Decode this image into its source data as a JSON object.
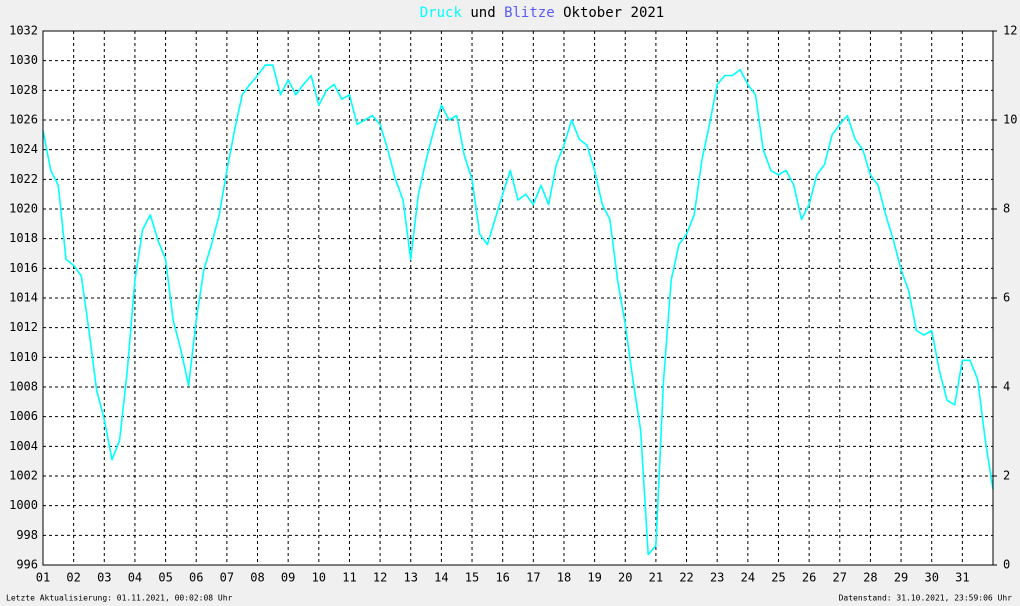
{
  "chart_data": {
    "type": "line",
    "title": [
      {
        "text": "Druck",
        "color": "#00ffff"
      },
      {
        "text": "und",
        "color": "#000000"
      },
      {
        "text": "Blitze",
        "color": "#5a5aff"
      },
      {
        "text": "Oktober 2021",
        "color": "#000000"
      }
    ],
    "footer_left": "Letzte Aktualisierung: 01.11.2021, 00:02:08 Uhr",
    "footer_right": "Datenstand: 31.10.2021, 23:59:06 Uhr",
    "x": [
      0,
      0.25,
      0.5,
      0.75,
      1,
      1.25,
      1.5,
      1.75,
      2,
      2.25,
      2.5,
      2.75,
      3,
      3.25,
      3.5,
      3.75,
      4,
      4.25,
      4.5,
      4.75,
      5,
      5.25,
      5.5,
      5.75,
      6,
      6.25,
      6.5,
      6.75,
      7,
      7.25,
      7.5,
      7.75,
      8,
      8.25,
      8.5,
      8.75,
      9,
      9.25,
      9.5,
      9.75,
      10,
      10.25,
      10.5,
      10.75,
      11,
      11.25,
      11.5,
      11.75,
      12,
      12.25,
      12.5,
      12.75,
      13,
      13.25,
      13.5,
      13.75,
      14,
      14.25,
      14.5,
      14.75,
      15,
      15.25,
      15.5,
      15.75,
      16,
      16.25,
      16.5,
      16.75,
      17,
      17.25,
      17.5,
      17.75,
      18,
      18.25,
      18.5,
      18.75,
      19,
      19.25,
      19.5,
      19.75,
      20,
      20.25,
      20.5,
      20.75,
      21,
      21.25,
      21.5,
      21.75,
      22,
      22.25,
      22.5,
      22.75,
      23,
      23.25,
      23.5,
      23.75,
      24,
      24.25,
      24.5,
      24.75,
      25,
      25.25,
      25.5,
      25.75,
      26,
      26.25,
      26.5,
      26.75,
      27,
      27.25,
      27.5,
      27.75,
      28,
      28.25,
      28.5,
      28.75,
      29,
      29.25,
      29.5,
      29.75,
      30,
      30.25,
      30.5,
      30.75,
      31
    ],
    "series": [
      {
        "name": "Druck",
        "color": "#00ffff",
        "values": [
          1025.3,
          1022.6,
          1021.6,
          1016.6,
          1016.2,
          1015.5,
          1011.8,
          1007.8,
          1005.8,
          1003.1,
          1004.4,
          1009.1,
          1015.2,
          1018.6,
          1019.6,
          1017.9,
          1016.6,
          1012.5,
          1010.5,
          1008.1,
          1012.5,
          1015.9,
          1017.6,
          1019.6,
          1022.6,
          1025.3,
          1027.7,
          1028.4,
          1029.0,
          1029.7,
          1029.7,
          1027.7,
          1028.7,
          1027.7,
          1028.4,
          1029.0,
          1027.0,
          1028.0,
          1028.4,
          1027.4,
          1027.7,
          1025.7,
          1026.0,
          1026.3,
          1025.7,
          1024.0,
          1022.0,
          1020.6,
          1016.6,
          1021.0,
          1023.3,
          1025.3,
          1027.0,
          1026.0,
          1026.3,
          1023.6,
          1022.0,
          1018.3,
          1017.6,
          1019.3,
          1021.0,
          1022.6,
          1020.6,
          1021.0,
          1020.3,
          1021.6,
          1020.3,
          1023.0,
          1024.3,
          1026.0,
          1024.7,
          1024.3,
          1022.6,
          1020.3,
          1019.3,
          1015.2,
          1012.2,
          1008.5,
          1005.1,
          996.7,
          997.3,
          1008.5,
          1015.2,
          1017.6,
          1018.3,
          1019.6,
          1023.3,
          1025.7,
          1028.4,
          1029.0,
          1029.0,
          1029.4,
          1028.4,
          1027.7,
          1024.0,
          1022.6,
          1022.3,
          1022.6,
          1021.6,
          1019.3,
          1020.3,
          1022.3,
          1023.0,
          1025.0,
          1025.7,
          1026.3,
          1024.7,
          1024.0,
          1022.3,
          1021.6,
          1019.6,
          1017.9,
          1015.9,
          1014.5,
          1011.8,
          1011.5,
          1011.8,
          1009.1,
          1007.1,
          1006.8,
          1009.8,
          1009.8,
          1008.5,
          1004.4,
          1001.1
        ]
      }
    ],
    "xlim": [
      0,
      31
    ],
    "xticks": [
      {
        "value": 0,
        "label": "01"
      },
      {
        "value": 1,
        "label": "02"
      },
      {
        "value": 2,
        "label": "03"
      },
      {
        "value": 3,
        "label": "04"
      },
      {
        "value": 4,
        "label": "05"
      },
      {
        "value": 5,
        "label": "06"
      },
      {
        "value": 6,
        "label": "07"
      },
      {
        "value": 7,
        "label": "08"
      },
      {
        "value": 8,
        "label": "09"
      },
      {
        "value": 9,
        "label": "10"
      },
      {
        "value": 10,
        "label": "11"
      },
      {
        "value": 11,
        "label": "12"
      },
      {
        "value": 12,
        "label": "13"
      },
      {
        "value": 13,
        "label": "14"
      },
      {
        "value": 14,
        "label": "15"
      },
      {
        "value": 15,
        "label": "16"
      },
      {
        "value": 16,
        "label": "17"
      },
      {
        "value": 17,
        "label": "18"
      },
      {
        "value": 18,
        "label": "19"
      },
      {
        "value": 19,
        "label": "20"
      },
      {
        "value": 20,
        "label": "21"
      },
      {
        "value": 21,
        "label": "22"
      },
      {
        "value": 22,
        "label": "23"
      },
      {
        "value": 23,
        "label": "24"
      },
      {
        "value": 24,
        "label": "25"
      },
      {
        "value": 25,
        "label": "26"
      },
      {
        "value": 26,
        "label": "27"
      },
      {
        "value": 27,
        "label": "28"
      },
      {
        "value": 28,
        "label": "29"
      },
      {
        "value": 29,
        "label": "30"
      },
      {
        "value": 30,
        "label": "31"
      }
    ],
    "ylim": [
      996,
      1032
    ],
    "yticks": [
      996,
      998,
      1000,
      1002,
      1004,
      1006,
      1008,
      1010,
      1012,
      1014,
      1016,
      1018,
      1020,
      1022,
      1024,
      1026,
      1028,
      1030,
      1032
    ],
    "y2lim": [
      0,
      12
    ],
    "y2ticks": [
      0,
      2,
      4,
      6,
      8,
      10,
      12
    ],
    "grid": true
  }
}
